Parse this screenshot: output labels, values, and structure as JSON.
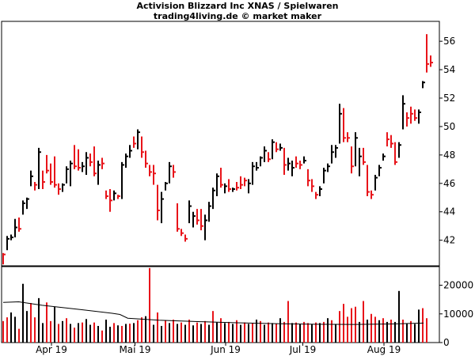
{
  "chart_data": [
    {
      "type": "ohlc",
      "title": "Activision Blizzard Inc XNAS / Spielwaren",
      "subtitle": "trading4living.de © market maker",
      "ylim": [
        40.2,
        57.4
      ],
      "y_ticks": [
        42,
        44,
        46,
        48,
        50,
        52,
        54,
        56
      ],
      "colors": {
        "up": "#000000",
        "down": "#e8141a",
        "axis": "#000000"
      },
      "grid": false,
      "bars": [
        [
          41.1,
          40.3,
          41.0,
          0
        ],
        [
          42.3,
          41.3,
          42.1,
          1
        ],
        [
          42.4,
          42.0,
          42.2,
          1
        ],
        [
          43.5,
          42.2,
          42.9,
          1
        ],
        [
          43.6,
          42.6,
          42.8,
          0
        ],
        [
          44.8,
          43.8,
          44.6,
          1
        ],
        [
          45.0,
          44.2,
          44.9,
          1
        ],
        [
          46.9,
          45.8,
          46.5,
          1
        ],
        [
          46.1,
          45.5,
          45.9,
          0
        ],
        [
          48.5,
          45.6,
          48.2,
          1
        ],
        [
          46.9,
          45.6,
          46.1,
          0
        ],
        [
          48.0,
          46.7,
          46.9,
          0
        ],
        [
          47.4,
          45.9,
          46.1,
          0
        ],
        [
          47.9,
          45.7,
          45.9,
          0
        ],
        [
          46.0,
          45.2,
          45.6,
          0
        ],
        [
          46.0,
          45.4,
          45.9,
          1
        ],
        [
          47.2,
          46.0,
          47.0,
          1
        ],
        [
          47.6,
          45.8,
          47.4,
          1
        ],
        [
          48.7,
          47.0,
          47.2,
          0
        ],
        [
          48.4,
          46.9,
          47.1,
          0
        ],
        [
          47.5,
          46.8,
          47.2,
          1
        ],
        [
          48.2,
          46.6,
          47.8,
          1
        ],
        [
          48.1,
          47.2,
          47.5,
          0
        ],
        [
          48.6,
          46.5,
          46.7,
          0
        ],
        [
          47.6,
          45.9,
          47.3,
          1
        ],
        [
          47.8,
          47.0,
          47.4,
          0
        ],
        [
          45.5,
          44.9,
          45.1,
          0
        ],
        [
          45.6,
          44.0,
          44.8,
          0
        ],
        [
          45.5,
          44.8,
          45.3,
          1
        ],
        [
          45.2,
          44.9,
          45.1,
          0
        ],
        [
          47.5,
          44.9,
          47.3,
          1
        ],
        [
          48.1,
          47.1,
          47.9,
          1
        ],
        [
          48.7,
          47.8,
          48.3,
          1
        ],
        [
          49.3,
          48.5,
          48.8,
          0
        ],
        [
          49.8,
          48.4,
          49.6,
          1
        ],
        [
          49.3,
          47.8,
          48.2,
          0
        ],
        [
          48.3,
          47.1,
          47.4,
          0
        ],
        [
          47.3,
          46.5,
          46.8,
          0
        ],
        [
          47.3,
          45.9,
          46.7,
          0
        ],
        [
          45.9,
          43.4,
          44.1,
          0
        ],
        [
          45.4,
          43.2,
          44.9,
          1
        ],
        [
          46.1,
          45.5,
          46.0,
          1
        ],
        [
          47.5,
          46.0,
          47.2,
          1
        ],
        [
          47.3,
          46.4,
          46.8,
          0
        ],
        [
          44.6,
          42.6,
          42.8,
          0
        ],
        [
          42.8,
          42.3,
          42.5,
          0
        ],
        [
          42.4,
          41.9,
          42.1,
          0
        ],
        [
          44.8,
          43.2,
          44.4,
          1
        ],
        [
          44.0,
          42.9,
          43.7,
          1
        ],
        [
          44.2,
          43.1,
          43.4,
          0
        ],
        [
          44.2,
          42.7,
          43.0,
          0
        ],
        [
          43.8,
          42.0,
          43.4,
          1
        ],
        [
          44.7,
          43.3,
          44.4,
          1
        ],
        [
          45.7,
          44.2,
          45.5,
          1
        ],
        [
          46.7,
          45.1,
          46.5,
          1
        ],
        [
          47.1,
          45.7,
          45.9,
          0
        ],
        [
          46.0,
          45.3,
          45.8,
          1
        ],
        [
          46.3,
          45.4,
          45.6,
          0
        ],
        [
          45.7,
          45.4,
          45.6,
          1
        ],
        [
          46.1,
          45.5,
          45.7,
          0
        ],
        [
          46.5,
          45.6,
          45.9,
          0
        ],
        [
          46.4,
          45.8,
          46.2,
          0
        ],
        [
          46.3,
          45.3,
          46.0,
          1
        ],
        [
          47.5,
          45.9,
          47.2,
          1
        ],
        [
          47.5,
          46.9,
          47.1,
          1
        ],
        [
          47.9,
          47.2,
          47.8,
          1
        ],
        [
          48.6,
          47.5,
          48.3,
          1
        ],
        [
          48.2,
          47.5,
          47.7,
          0
        ],
        [
          49.1,
          47.7,
          48.9,
          1
        ],
        [
          48.9,
          48.2,
          48.4,
          0
        ],
        [
          48.8,
          48.3,
          48.5,
          1
        ],
        [
          48.5,
          46.6,
          47.3,
          0
        ],
        [
          47.8,
          46.9,
          47.4,
          1
        ],
        [
          47.6,
          46.5,
          47.1,
          1
        ],
        [
          47.9,
          47.1,
          47.4,
          0
        ],
        [
          47.6,
          47.0,
          47.3,
          0
        ],
        [
          47.9,
          47.4,
          47.6,
          1
        ],
        [
          47.0,
          45.8,
          46.2,
          0
        ],
        [
          46.3,
          45.4,
          45.8,
          0
        ],
        [
          45.4,
          44.9,
          45.2,
          0
        ],
        [
          45.8,
          45.1,
          45.6,
          1
        ],
        [
          47.1,
          46.0,
          46.9,
          1
        ],
        [
          47.4,
          46.8,
          47.2,
          1
        ],
        [
          48.7,
          47.4,
          48.2,
          1
        ],
        [
          48.7,
          47.8,
          48.5,
          1
        ],
        [
          51.6,
          48.8,
          50.9,
          1
        ],
        [
          51.3,
          48.9,
          49.2,
          0
        ],
        [
          49.6,
          48.9,
          49.2,
          0
        ],
        [
          48.6,
          46.7,
          47.2,
          0
        ],
        [
          49.6,
          47.2,
          49.2,
          1
        ],
        [
          48.5,
          46.5,
          47.9,
          1
        ],
        [
          48.5,
          47.3,
          47.5,
          0
        ],
        [
          47.3,
          45.1,
          45.4,
          0
        ],
        [
          45.5,
          44.9,
          45.2,
          0
        ],
        [
          46.6,
          45.5,
          46.4,
          1
        ],
        [
          47.3,
          46.5,
          47.1,
          1
        ],
        [
          48.1,
          47.6,
          47.9,
          1
        ],
        [
          49.6,
          48.6,
          49.1,
          0
        ],
        [
          49.4,
          48.5,
          48.8,
          0
        ],
        [
          48.9,
          47.3,
          47.5,
          0
        ],
        [
          48.9,
          47.8,
          48.7,
          1
        ],
        [
          52.2,
          49.8,
          51.6,
          1
        ],
        [
          51.0,
          50.0,
          50.6,
          0
        ],
        [
          51.4,
          50.2,
          50.9,
          0
        ],
        [
          51.2,
          50.4,
          50.6,
          0
        ],
        [
          51.2,
          50.2,
          51.0,
          1
        ],
        [
          53.2,
          52.7,
          53.1,
          1
        ],
        [
          56.5,
          53.8,
          54.4,
          0
        ],
        [
          55.0,
          54.2,
          54.5,
          0
        ]
      ],
      "volume": [
        [
          7500,
          0
        ],
        [
          8800,
          0
        ],
        [
          10500,
          1
        ],
        [
          9000,
          1
        ],
        [
          4800,
          0
        ],
        [
          20500,
          1
        ],
        [
          11000,
          1
        ],
        [
          13800,
          0
        ],
        [
          8800,
          0
        ],
        [
          15500,
          1
        ],
        [
          6800,
          1
        ],
        [
          14000,
          0
        ],
        [
          7500,
          0
        ],
        [
          12500,
          1
        ],
        [
          6500,
          0
        ],
        [
          7500,
          1
        ],
        [
          8500,
          0
        ],
        [
          6500,
          1
        ],
        [
          5200,
          0
        ],
        [
          6800,
          1
        ],
        [
          7000,
          0
        ],
        [
          8200,
          1
        ],
        [
          6200,
          1
        ],
        [
          7000,
          0
        ],
        [
          5800,
          1
        ],
        [
          4200,
          0
        ],
        [
          8000,
          1
        ],
        [
          5500,
          1
        ],
        [
          6800,
          0
        ],
        [
          6000,
          1
        ],
        [
          5800,
          0
        ],
        [
          6500,
          1
        ],
        [
          6600,
          0
        ],
        [
          6800,
          1
        ],
        [
          7800,
          0
        ],
        [
          8800,
          0
        ],
        [
          9200,
          1
        ],
        [
          26000,
          0
        ],
        [
          6200,
          1
        ],
        [
          10500,
          0
        ],
        [
          5800,
          1
        ],
        [
          7800,
          0
        ],
        [
          6800,
          1
        ],
        [
          8000,
          0
        ],
        [
          6500,
          1
        ],
        [
          7000,
          0
        ],
        [
          6200,
          1
        ],
        [
          8000,
          0
        ],
        [
          6000,
          1
        ],
        [
          7000,
          0
        ],
        [
          6500,
          1
        ],
        [
          7500,
          0
        ],
        [
          6200,
          1
        ],
        [
          11000,
          0
        ],
        [
          7000,
          1
        ],
        [
          8500,
          0
        ],
        [
          6800,
          1
        ],
        [
          7200,
          0
        ],
        [
          6500,
          1
        ],
        [
          7800,
          0
        ],
        [
          6200,
          1
        ],
        [
          7000,
          0
        ],
        [
          6500,
          1
        ],
        [
          6800,
          0
        ],
        [
          8000,
          1
        ],
        [
          7500,
          0
        ],
        [
          6200,
          1
        ],
        [
          7000,
          0
        ],
        [
          6800,
          1
        ],
        [
          6500,
          0
        ],
        [
          8500,
          1
        ],
        [
          7200,
          0
        ],
        [
          14500,
          0
        ],
        [
          6800,
          1
        ],
        [
          7000,
          0
        ],
        [
          6500,
          1
        ],
        [
          7200,
          0
        ],
        [
          6800,
          0
        ],
        [
          6500,
          1
        ],
        [
          7000,
          0
        ],
        [
          6800,
          1
        ],
        [
          7200,
          0
        ],
        [
          8500,
          1
        ],
        [
          7800,
          0
        ],
        [
          6500,
          1
        ],
        [
          11000,
          0
        ],
        [
          13500,
          0
        ],
        [
          9000,
          0
        ],
        [
          12000,
          0
        ],
        [
          12500,
          0
        ],
        [
          7200,
          1
        ],
        [
          14500,
          0
        ],
        [
          8000,
          1
        ],
        [
          10000,
          0
        ],
        [
          9000,
          0
        ],
        [
          7800,
          1
        ],
        [
          8500,
          0
        ],
        [
          7200,
          1
        ],
        [
          8000,
          0
        ],
        [
          7200,
          1
        ],
        [
          18000,
          1
        ],
        [
          8000,
          0
        ],
        [
          6500,
          1
        ],
        [
          7500,
          0
        ],
        [
          6500,
          1
        ],
        [
          11500,
          1
        ],
        [
          12000,
          0
        ],
        [
          8500,
          0
        ]
      ],
      "volume_average": [
        [
          0,
          14000
        ],
        [
          20,
          14200
        ],
        [
          50,
          13000
        ],
        [
          100,
          11500
        ],
        [
          140,
          10200
        ],
        [
          150,
          9800
        ],
        [
          160,
          8500
        ],
        [
          200,
          7800
        ],
        [
          250,
          7300
        ],
        [
          300,
          6900
        ],
        [
          350,
          6600
        ],
        [
          400,
          6400
        ],
        [
          450,
          6300
        ],
        [
          500,
          6500
        ],
        [
          540,
          6800
        ]
      ],
      "volume_ylim": [
        0,
        26500
      ],
      "volume_ticks": [
        0,
        10000,
        20000
      ],
      "x_ticks": [
        {
          "label": "Apr 19",
          "index": 12.2
        },
        {
          "label": "Mai 19",
          "index": 33.3
        },
        {
          "label": "Jun 19",
          "index": 56.2
        },
        {
          "label": "Jul 19",
          "index": 75.7
        },
        {
          "label": "Aug 19",
          "index": 96.2
        }
      ]
    }
  ]
}
